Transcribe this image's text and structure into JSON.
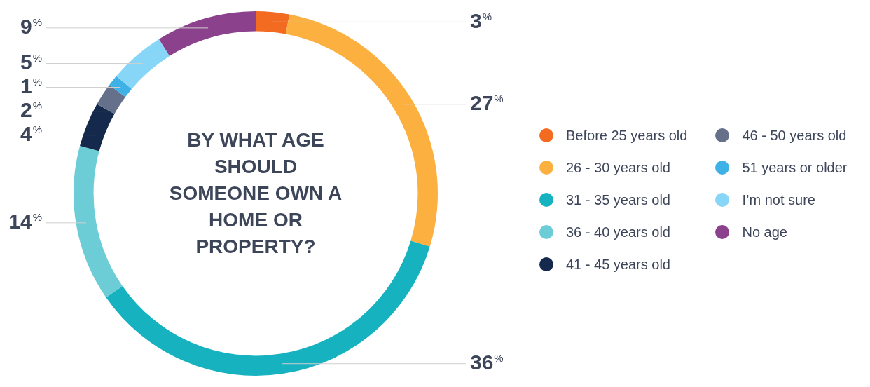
{
  "chart_data": {
    "type": "donut",
    "title": "BY WHAT AGE SHOULD SOMEONE OWN A HOME OR PROPERTY?",
    "categories": [
      "Before 25 years old",
      "26 - 30 years old",
      "31 - 35 years old",
      "36 - 40 years old",
      "41 - 45 years old",
      "46 - 50 years old",
      "51 years or older",
      "I’m not sure",
      "No age"
    ],
    "values": [
      3,
      27,
      36,
      14,
      4,
      2,
      1,
      5,
      9
    ],
    "colors": [
      "#f26b21",
      "#fbb040",
      "#17b2c0",
      "#6dcdd6",
      "#14294b",
      "#65718a",
      "#3eb1e6",
      "#88d6f7",
      "#8b418b"
    ],
    "value_labels": [
      "3%",
      "27%",
      "36%",
      "14%",
      "4%",
      "2%",
      "1%",
      "5%",
      "9%"
    ],
    "legend": "right"
  }
}
